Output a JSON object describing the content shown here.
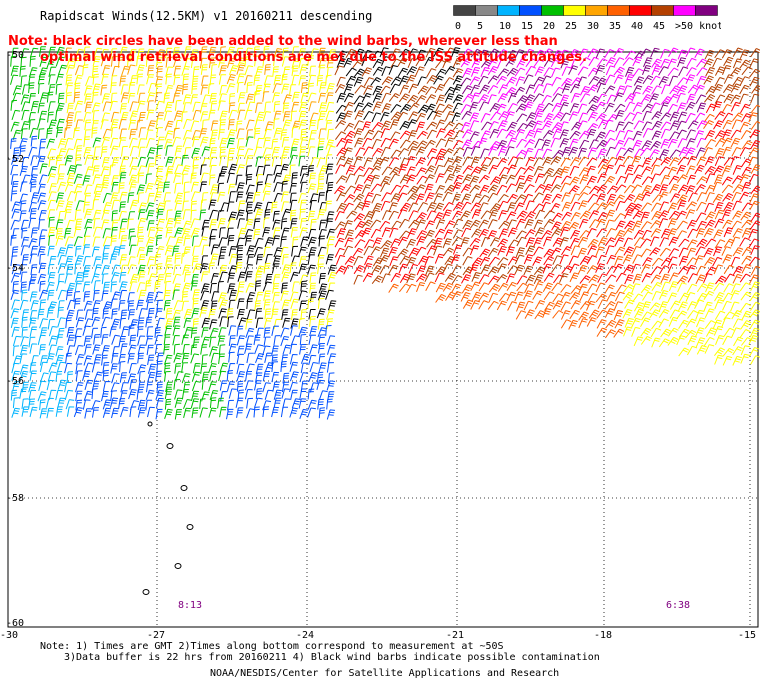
{
  "title": "Rapidscat Winds(12.5KM) v1 20160211 descending",
  "note_line1": "Note: black circles have been added to the wind barbs, wherever less than",
  "note_line2": "optimal wind retrieval conditions are met due to the ISS attitude changes.",
  "colorbar": {
    "labels": [
      "0",
      "5",
      "10",
      "15",
      "20",
      "25",
      "30",
      "35",
      "40",
      "45",
      ">50 knots"
    ],
    "colors": [
      "#444444",
      "#888888",
      "#00b4ff",
      "#0050ff",
      "#00c000",
      "#ffff00",
      "#ffa500",
      "#ff6000",
      "#ff0000",
      "#b44000",
      "#ff00ff",
      "#800080"
    ]
  },
  "axes": {
    "lat_labels": [
      "-50",
      "-52",
      "-54",
      "-56",
      "-58",
      "-60"
    ],
    "lon_labels": [
      "-30",
      "-27",
      "-24",
      "-21",
      "-18",
      "-15"
    ]
  },
  "time_labels": [
    "8:13",
    "6:38"
  ],
  "footer": {
    "line1": "Note: 1) Times are GMT 2)Times along bottom correspond to measurement at ~50S",
    "line2": "3)Data buffer is 22 hrs from 20160211 4) Black wind barbs indicate possible contamination",
    "line3": "NOAA/NESDIS/Center for Satellite Applications and Research"
  }
}
